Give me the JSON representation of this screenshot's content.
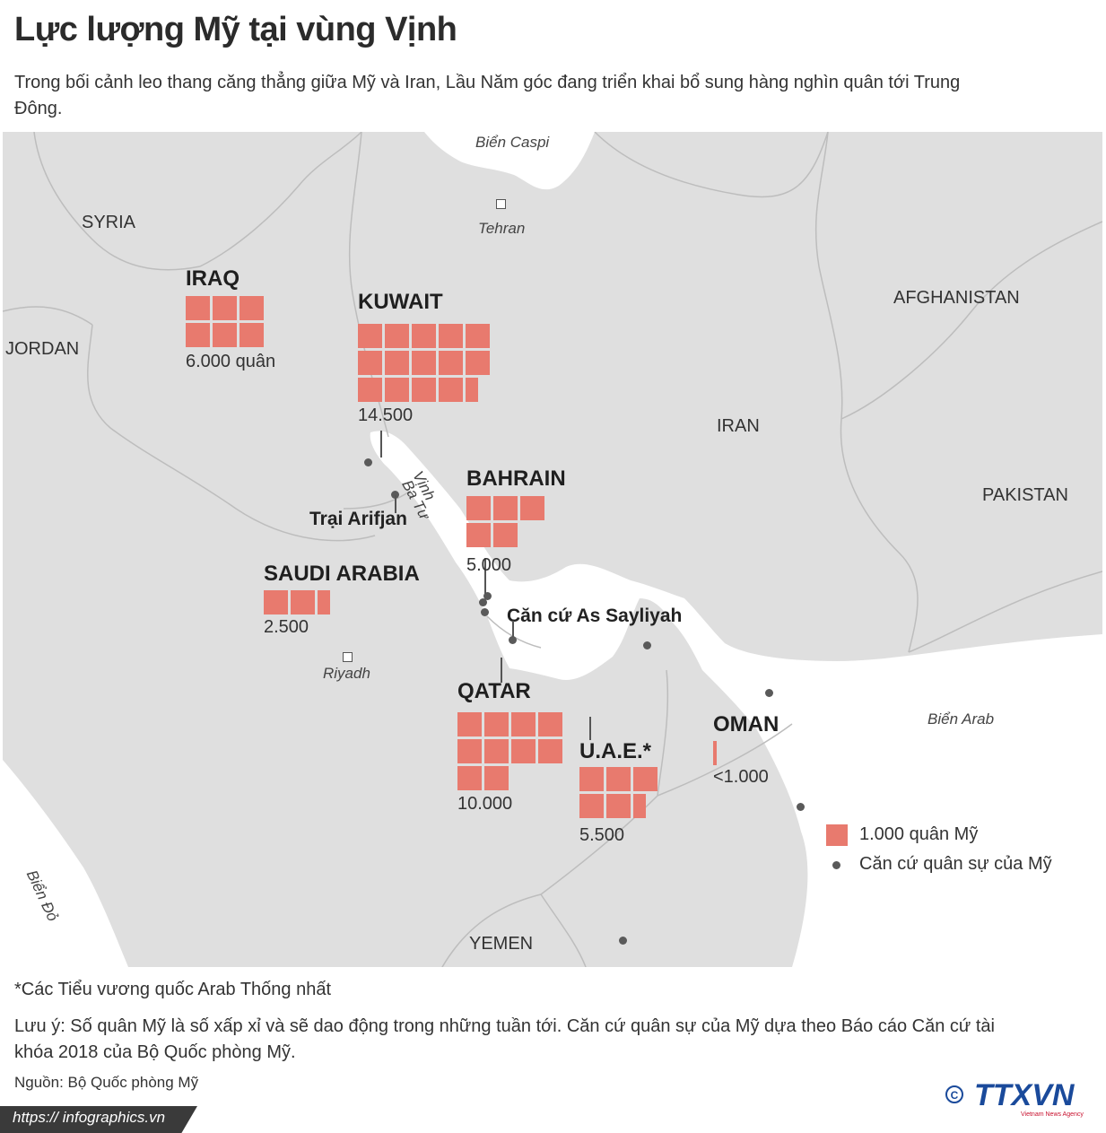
{
  "header": {
    "title": "Lực lượng Mỹ tại vùng Vịnh",
    "subtitle": "Trong bối cảnh leo thang căng thẳng giữa Mỹ và Iran, Lầu Năm góc đang triển khai bổ sung hàng nghìn quân tới Trung Đông."
  },
  "colors": {
    "land": "#dfdfdf",
    "water": "#ffffff",
    "border": "#bdbdbd",
    "troop_square": "#e87a6e",
    "base_dot": "#5a5a5a",
    "text_dark": "#222222"
  },
  "map": {
    "countries": {
      "syria": "SYRIA",
      "jordan": "JORDAN",
      "afghanistan": "AFGHANISTAN",
      "iran": "IRAN",
      "pakistan": "PAKISTAN",
      "yemen": "YEMEN"
    },
    "seas": {
      "caspian": "Biển Caspi",
      "gulf_line1": "Vịnh",
      "gulf_line2": "Ba Tư",
      "arabian": "Biển Arab",
      "red": "Biển Đỏ"
    },
    "cities": {
      "tehran": "Tehran",
      "riyadh": "Riyadh"
    },
    "places": {
      "arifjan": "Trại Arifjan",
      "sayliyah": "Căn cứ As Sayliyah"
    }
  },
  "deployments": [
    {
      "id": "iraq",
      "name": "IRAQ",
      "count_label": "6.000 quân",
      "thousands": 6
    },
    {
      "id": "kuwait",
      "name": "KUWAIT",
      "count_label": "14.500",
      "thousands": 14.5
    },
    {
      "id": "bahrain",
      "name": "BAHRAIN",
      "count_label": "5.000",
      "thousands": 5
    },
    {
      "id": "saudi",
      "name": "SAUDI ARABIA",
      "count_label": "2.500",
      "thousands": 2.5
    },
    {
      "id": "qatar",
      "name": "QATAR",
      "count_label": "10.000",
      "thousands": 10
    },
    {
      "id": "uae",
      "name": "U.A.E.*",
      "count_label": "5.500",
      "thousands": 5.5
    },
    {
      "id": "oman",
      "name": "OMAN",
      "count_label": "<1.000",
      "thousands": 0.15
    }
  ],
  "legend": {
    "troops": "1.000 quân Mỹ",
    "bases": "Căn cứ quân sự của Mỹ"
  },
  "footer": {
    "footnote": "*Các Tiểu vương quốc Arab Thống nhất",
    "note": "Lưu ý: Số quân Mỹ là số xấp xỉ và sẽ dao động trong những tuần tới. Căn cứ quân sự của Mỹ dựa theo Báo cáo Căn cứ tài khóa 2018 của Bộ Quốc phòng Mỹ.",
    "source": "Nguồn: Bộ Quốc phòng Mỹ",
    "url": "https:// infographics.vn",
    "logo_text": "TTXVN",
    "logo_sub": "Vietnam News Agency"
  }
}
